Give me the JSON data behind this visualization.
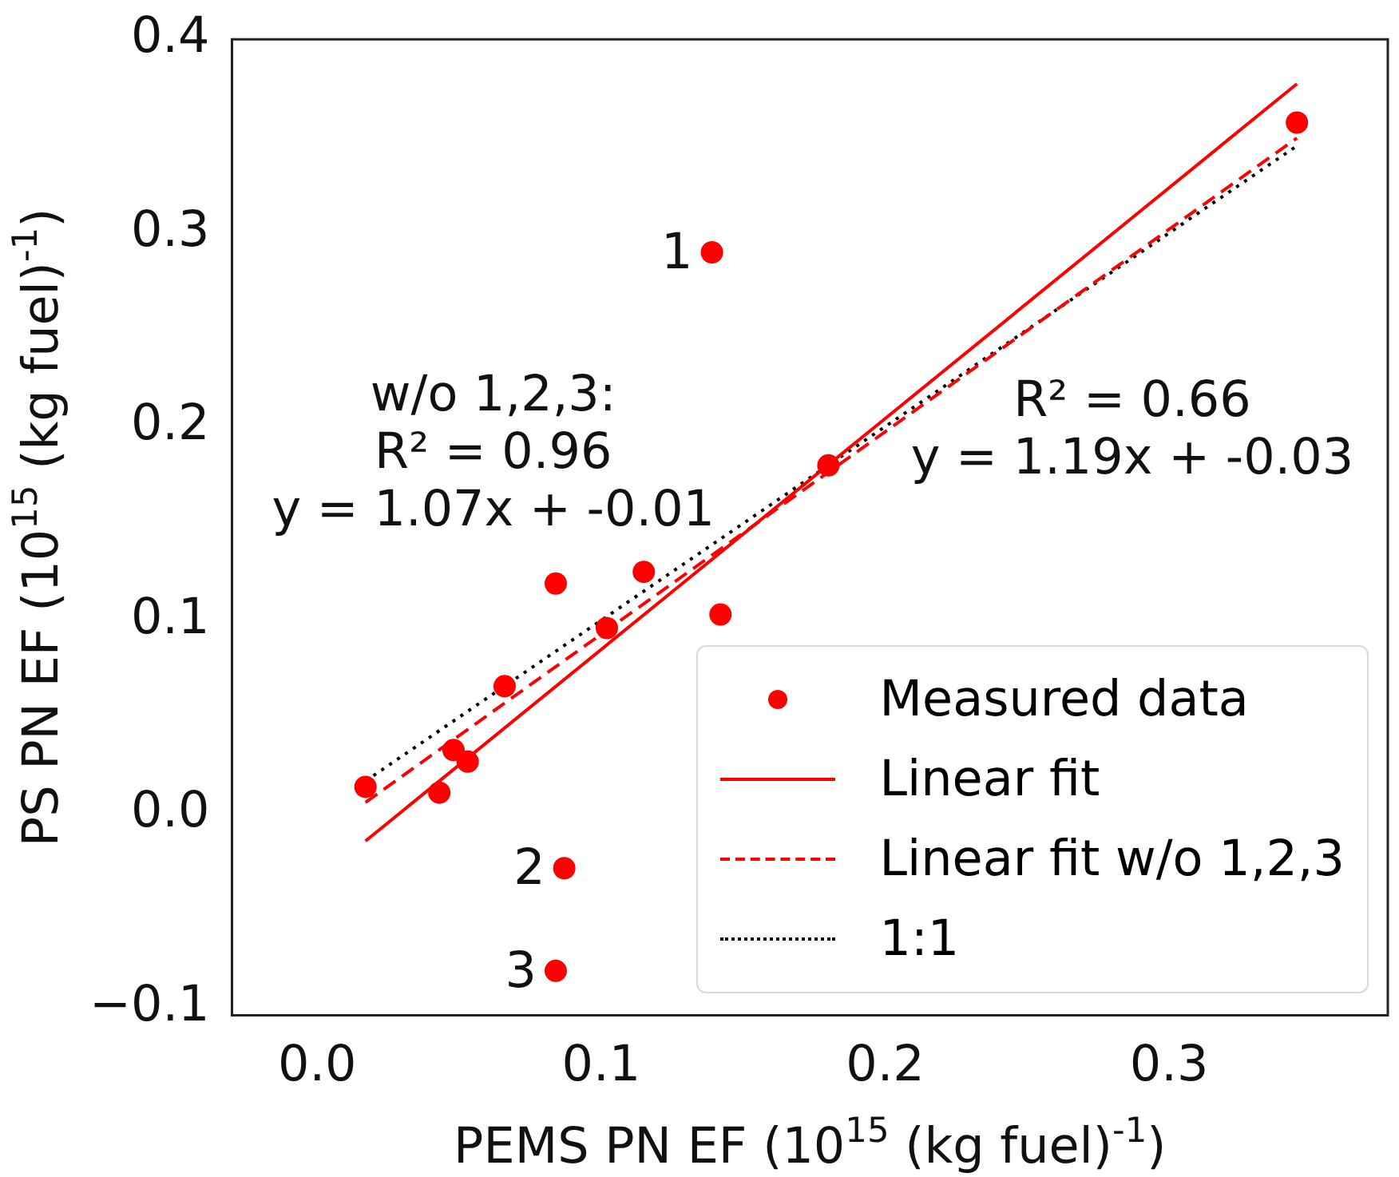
{
  "chart_data": {
    "type": "scatter",
    "xlabel": "PEMS PN EF (10$^{15}$ (kg fuel)$^{-1}$)",
    "ylabel": "PS PN EF (10$^{15}$ (kg fuel)$^{-1}$)",
    "xlim": [
      -0.03,
      0.377
    ],
    "ylim": [
      -0.104,
      0.4
    ],
    "xticks": [
      {
        "value": 0,
        "label": "0.0"
      },
      0.1,
      0.2,
      0.3
    ],
    "yticks": [
      {
        "value": -0.1,
        "label": "−0.1"
      },
      {
        "value": 0,
        "label": "0.0"
      },
      0.1,
      0.2,
      0.3,
      0.4
    ],
    "grid": false,
    "legend": "bottom right",
    "series": [
      {
        "name": "Measured data",
        "type": "scatter",
        "marker": "circle",
        "color": "#ff0000",
        "x": [
          0.017,
          0.043,
          0.048,
          0.053,
          0.066,
          0.084,
          0.102,
          0.115,
          0.142,
          0.087,
          0.084,
          0.139,
          0.18,
          0.345
        ],
        "values": [
          0.014,
          0.011,
          0.033,
          0.027,
          0.066,
          0.119,
          0.096,
          0.125,
          0.103,
          -0.028,
          -0.081,
          0.29,
          0.18,
          0.357
        ]
      },
      {
        "name": "Linear fit",
        "type": "line",
        "line_style": "solid",
        "color": "#ff0000",
        "x": [
          0.017,
          0.345
        ],
        "values": [
          -0.014,
          0.377
        ]
      },
      {
        "name": "Linear fit w/o 1,2,3",
        "type": "line",
        "line_style": "dashed",
        "color": "#ff0000",
        "x": [
          0.017,
          0.345
        ],
        "values": [
          0.006,
          0.349
        ]
      },
      {
        "name": "1:1",
        "type": "line",
        "line_style": "dotted",
        "color": "#000000",
        "x": [
          0.017,
          0.345
        ],
        "values": [
          0.017,
          0.345
        ]
      }
    ],
    "annotations": [
      {
        "text": "1",
        "x": 0.139,
        "y": 0.29
      },
      {
        "text": "2",
        "x": 0.087,
        "y": -0.028
      },
      {
        "text": "3",
        "x": 0.084,
        "y": -0.081
      },
      "w/o 1,2,3:\nR² = 0.96\ny = 1.07x + -0.01",
      "R² = 0.66\ny = 1.19x + -0.03"
    ]
  }
}
